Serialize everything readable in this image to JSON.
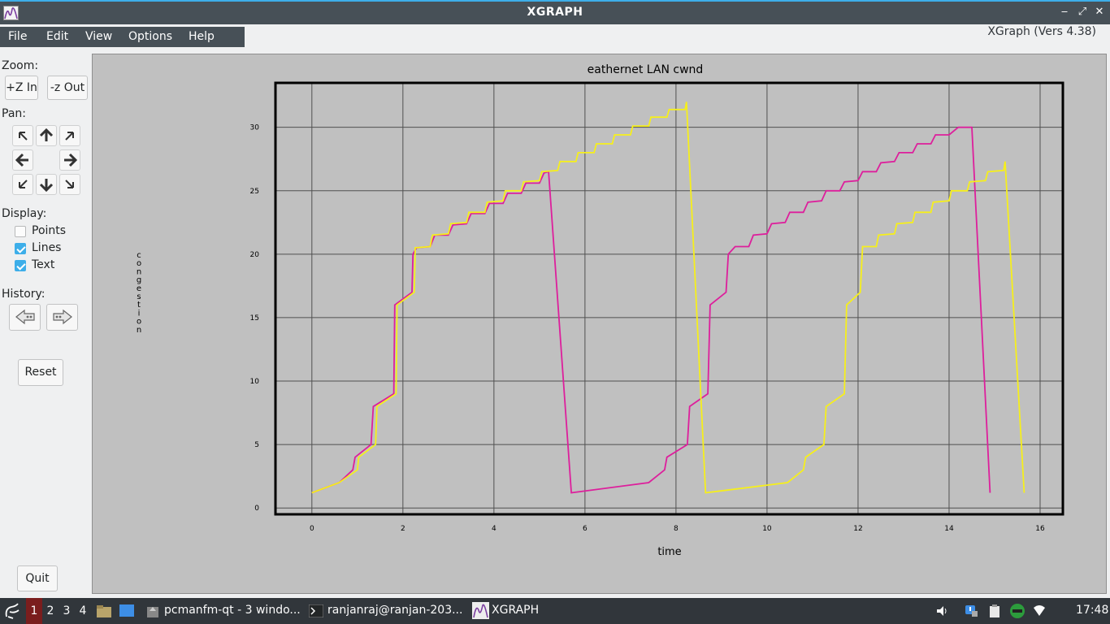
{
  "window": {
    "title": "XGRAPH",
    "version": "XGraph (Vers 4.38)",
    "minimize": "‒",
    "maximize": "⤢",
    "close": "✕"
  },
  "menu": {
    "file": "File",
    "edit": "Edit",
    "view": "View",
    "options": "Options",
    "help": "Help"
  },
  "panel": {
    "zoom_label": "Zoom:",
    "zoom_in": "+Z In",
    "zoom_out": "-z Out",
    "pan_label": "Pan:",
    "display_label": "Display:",
    "points": "Points",
    "lines": "Lines",
    "text": "Text",
    "points_checked": false,
    "lines_checked": true,
    "text_checked": true,
    "history_label": "History:",
    "reset": "Reset",
    "quit": "Quit"
  },
  "chart_data": {
    "type": "line",
    "title": "eathernet LAN cwnd",
    "xlabel": "time",
    "ylabel": "congestion",
    "xlim": [
      -0.8,
      16.5
    ],
    "ylim": [
      -0.5,
      33.5
    ],
    "xticks": [
      0,
      2,
      4,
      6,
      8,
      10,
      12,
      14,
      16
    ],
    "yticks": [
      0,
      5,
      10,
      15,
      20,
      25,
      30
    ],
    "grid": true,
    "series": [
      {
        "color": "#dd1f9c",
        "points": [
          [
            0,
            1.2
          ],
          [
            0.6,
            2
          ],
          [
            0.9,
            3
          ],
          [
            0.95,
            4
          ],
          [
            1.3,
            5
          ],
          [
            1.35,
            8
          ],
          [
            1.8,
            9
          ],
          [
            1.82,
            16
          ],
          [
            2.2,
            17
          ],
          [
            2.22,
            20
          ],
          [
            2.3,
            20.5
          ],
          [
            2.6,
            20.6
          ],
          [
            2.7,
            21.5
          ],
          [
            3,
            21.5
          ],
          [
            3.1,
            22.3
          ],
          [
            3.4,
            22.4
          ],
          [
            3.5,
            23.2
          ],
          [
            3.8,
            23.2
          ],
          [
            3.9,
            24
          ],
          [
            4.2,
            24
          ],
          [
            4.3,
            24.8
          ],
          [
            4.6,
            24.8
          ],
          [
            4.7,
            25.6
          ],
          [
            5,
            25.6
          ],
          [
            5.1,
            26.4
          ],
          [
            5.2,
            26.5
          ],
          [
            5.7,
            1.2
          ],
          [
            7.4,
            2
          ],
          [
            7.75,
            3
          ],
          [
            7.8,
            4
          ],
          [
            8.25,
            5
          ],
          [
            8.3,
            8
          ],
          [
            8.7,
            9
          ],
          [
            8.75,
            16
          ],
          [
            9.1,
            17
          ],
          [
            9.15,
            20
          ],
          [
            9.3,
            20.6
          ],
          [
            9.6,
            20.6
          ],
          [
            9.7,
            21.5
          ],
          [
            10,
            21.6
          ],
          [
            10.1,
            22.4
          ],
          [
            10.4,
            22.5
          ],
          [
            10.5,
            23.3
          ],
          [
            10.8,
            23.3
          ],
          [
            10.9,
            24.1
          ],
          [
            11.2,
            24.2
          ],
          [
            11.3,
            25
          ],
          [
            11.6,
            25
          ],
          [
            11.7,
            25.7
          ],
          [
            12,
            25.8
          ],
          [
            12.1,
            26.5
          ],
          [
            12.4,
            26.5
          ],
          [
            12.5,
            27.2
          ],
          [
            12.8,
            27.3
          ],
          [
            12.9,
            28
          ],
          [
            13.2,
            28
          ],
          [
            13.3,
            28.7
          ],
          [
            13.6,
            28.7
          ],
          [
            13.7,
            29.4
          ],
          [
            14,
            29.4
          ],
          [
            14.2,
            30
          ],
          [
            14.5,
            30
          ],
          [
            14.9,
            1.2
          ]
        ]
      },
      {
        "color": "#f6ef1b",
        "points": [
          [
            0,
            1.2
          ],
          [
            0.6,
            2
          ],
          [
            1,
            3
          ],
          [
            1.03,
            4
          ],
          [
            1.4,
            5
          ],
          [
            1.43,
            8
          ],
          [
            1.85,
            9
          ],
          [
            1.87,
            16
          ],
          [
            2.25,
            17
          ],
          [
            2.27,
            20.5
          ],
          [
            2.6,
            20.6
          ],
          [
            2.65,
            21.5
          ],
          [
            3,
            21.6
          ],
          [
            3.05,
            22.4
          ],
          [
            3.4,
            22.5
          ],
          [
            3.45,
            23.3
          ],
          [
            3.8,
            23.3
          ],
          [
            3.85,
            24.1
          ],
          [
            4.2,
            24.2
          ],
          [
            4.25,
            25
          ],
          [
            4.6,
            25
          ],
          [
            4.65,
            25.7
          ],
          [
            5,
            25.8
          ],
          [
            5.05,
            26.5
          ],
          [
            5.4,
            26.6
          ],
          [
            5.45,
            27.3
          ],
          [
            5.8,
            27.3
          ],
          [
            5.85,
            28
          ],
          [
            6.2,
            28
          ],
          [
            6.25,
            28.7
          ],
          [
            6.6,
            28.7
          ],
          [
            6.65,
            29.4
          ],
          [
            7,
            29.4
          ],
          [
            7.05,
            30.1
          ],
          [
            7.4,
            30.1
          ],
          [
            7.45,
            30.8
          ],
          [
            7.8,
            30.8
          ],
          [
            7.85,
            31.4
          ],
          [
            8.2,
            31.4
          ],
          [
            8.23,
            32
          ],
          [
            8.65,
            1.2
          ],
          [
            10.45,
            2
          ],
          [
            10.8,
            3
          ],
          [
            10.85,
            4
          ],
          [
            11.25,
            5
          ],
          [
            11.3,
            8
          ],
          [
            11.7,
            9
          ],
          [
            11.75,
            16
          ],
          [
            12.05,
            17
          ],
          [
            12.1,
            20.6
          ],
          [
            12.4,
            20.6
          ],
          [
            12.45,
            21.5
          ],
          [
            12.8,
            21.6
          ],
          [
            12.85,
            22.4
          ],
          [
            13.2,
            22.5
          ],
          [
            13.25,
            23.3
          ],
          [
            13.6,
            23.3
          ],
          [
            13.65,
            24.1
          ],
          [
            14,
            24.2
          ],
          [
            14.05,
            25
          ],
          [
            14.4,
            25
          ],
          [
            14.45,
            25.7
          ],
          [
            14.8,
            25.8
          ],
          [
            14.85,
            26.5
          ],
          [
            15.2,
            26.6
          ],
          [
            15.23,
            27.3
          ],
          [
            15.65,
            1.2
          ]
        ]
      }
    ]
  },
  "taskbar": {
    "desktops": [
      "1",
      "2",
      "3",
      "4"
    ],
    "tasks": [
      "pcmanfm-qt - 3 windo...",
      "ranjanraj@ranjan-203...",
      "XGRAPH"
    ],
    "clock": "17:48"
  }
}
